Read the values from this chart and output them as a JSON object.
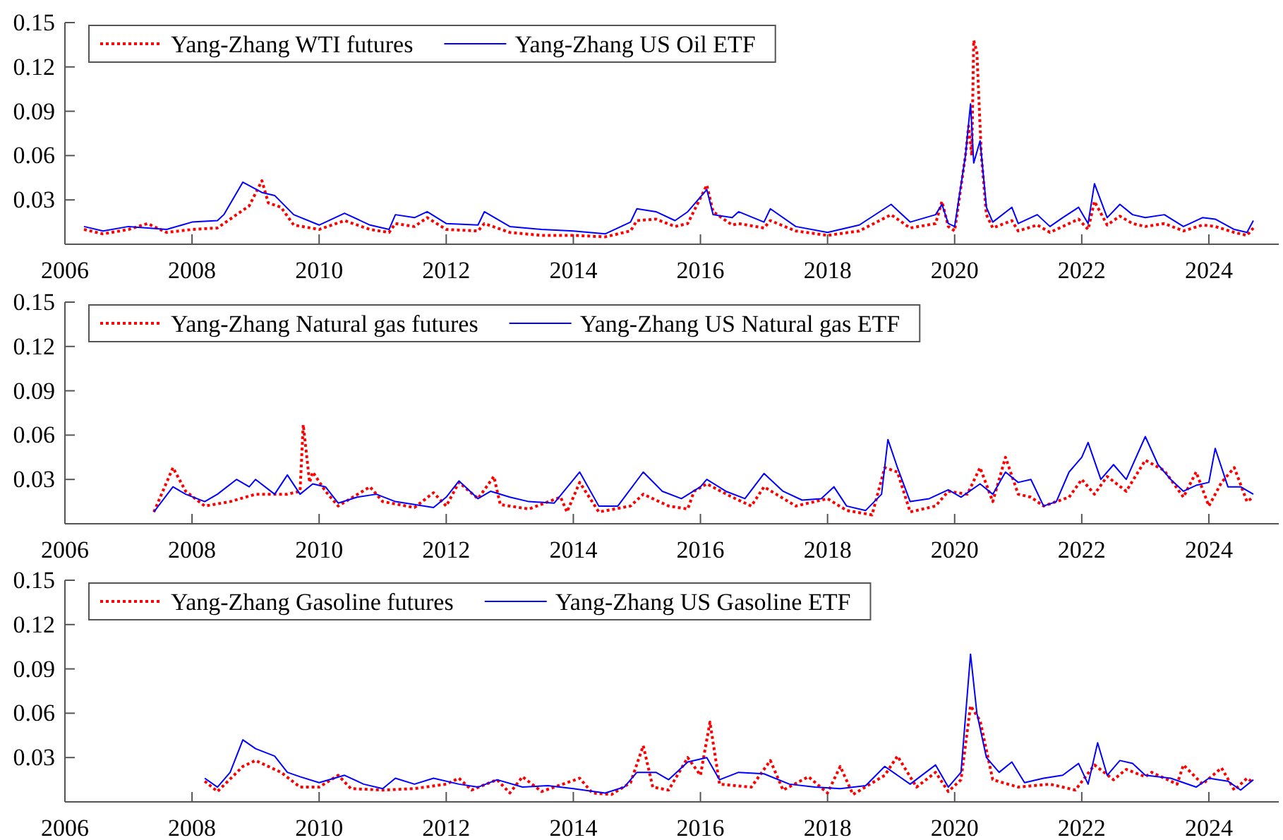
{
  "chart_data": [
    {
      "type": "line",
      "xlim": [
        2006,
        2025.1
      ],
      "xticks": [
        2006,
        2008,
        2010,
        2012,
        2014,
        2016,
        2018,
        2020,
        2022,
        2024
      ],
      "ylim": [
        0,
        0.15
      ],
      "yticks": [
        0.03,
        0.06,
        0.09,
        0.12,
        0.15
      ],
      "grid": false,
      "legend": "top left",
      "series": [
        {
          "name": "Yang-Zhang WTI futures",
          "color": "#ff0000",
          "line_style": "dotted",
          "x": [
            2006.3,
            2006.6,
            2007,
            2007.3,
            2007.6,
            2008,
            2008.4,
            2008.7,
            2008.9,
            2009.1,
            2009.2,
            2009.4,
            2009.6,
            2010,
            2010.4,
            2010.8,
            2011.1,
            2011.2,
            2011.5,
            2011.7,
            2012,
            2012.5,
            2012.6,
            2013,
            2013.5,
            2014,
            2014.5,
            2014.9,
            2015.0,
            2015.3,
            2015.6,
            2015.8,
            2016.1,
            2016.2,
            2016.5,
            2016.6,
            2017,
            2017.1,
            2017.5,
            2018,
            2018.5,
            2019,
            2019.3,
            2019.7,
            2019.8,
            2019.9,
            2020,
            2020.17,
            2020.22,
            2020.27,
            2020.3,
            2020.35,
            2020.42,
            2020.5,
            2020.6,
            2020.9,
            2021,
            2021.3,
            2021.5,
            2021.7,
            2021.95,
            2022.1,
            2022.2,
            2022.4,
            2022.6,
            2022.8,
            2023,
            2023.3,
            2023.6,
            2023.9,
            2024.1,
            2024.4,
            2024.6,
            2024.7
          ],
          "values": [
            0.01,
            0.007,
            0.01,
            0.014,
            0.008,
            0.01,
            0.011,
            0.02,
            0.026,
            0.043,
            0.028,
            0.025,
            0.013,
            0.01,
            0.016,
            0.01,
            0.008,
            0.014,
            0.012,
            0.018,
            0.01,
            0.009,
            0.014,
            0.008,
            0.006,
            0.006,
            0.005,
            0.009,
            0.016,
            0.017,
            0.012,
            0.014,
            0.04,
            0.022,
            0.013,
            0.014,
            0.011,
            0.016,
            0.009,
            0.006,
            0.009,
            0.02,
            0.011,
            0.014,
            0.029,
            0.012,
            0.009,
            0.06,
            0.08,
            0.06,
            0.138,
            0.13,
            0.06,
            0.02,
            0.011,
            0.016,
            0.009,
            0.013,
            0.008,
            0.012,
            0.017,
            0.01,
            0.029,
            0.013,
            0.019,
            0.014,
            0.012,
            0.014,
            0.009,
            0.013,
            0.012,
            0.008,
            0.006,
            0.011
          ]
        },
        {
          "name": "Yang-Zhang US Oil ETF",
          "color": "#0000ff",
          "line_style": "solid",
          "x": [
            2006.3,
            2006.6,
            2007,
            2007.3,
            2007.6,
            2008,
            2008.4,
            2008.5,
            2008.8,
            2009.1,
            2009.3,
            2009.6,
            2010,
            2010.4,
            2010.8,
            2011.1,
            2011.2,
            2011.5,
            2011.7,
            2012,
            2012.5,
            2012.6,
            2013,
            2013.5,
            2014,
            2014.5,
            2014.9,
            2015.0,
            2015.3,
            2015.6,
            2015.8,
            2016.1,
            2016.2,
            2016.5,
            2016.6,
            2017,
            2017.1,
            2017.5,
            2018,
            2018.5,
            2019,
            2019.3,
            2019.7,
            2019.8,
            2019.9,
            2020,
            2020.17,
            2020.25,
            2020.3,
            2020.4,
            2020.5,
            2020.6,
            2020.9,
            2021,
            2021.3,
            2021.5,
            2021.7,
            2021.95,
            2022.1,
            2022.2,
            2022.4,
            2022.6,
            2022.8,
            2023,
            2023.3,
            2023.6,
            2023.9,
            2024.1,
            2024.4,
            2024.6,
            2024.7
          ],
          "values": [
            0.012,
            0.009,
            0.012,
            0.011,
            0.01,
            0.015,
            0.016,
            0.02,
            0.042,
            0.035,
            0.033,
            0.02,
            0.013,
            0.021,
            0.013,
            0.01,
            0.02,
            0.018,
            0.022,
            0.014,
            0.013,
            0.022,
            0.012,
            0.01,
            0.009,
            0.007,
            0.015,
            0.024,
            0.022,
            0.016,
            0.022,
            0.037,
            0.02,
            0.018,
            0.022,
            0.015,
            0.024,
            0.012,
            0.008,
            0.013,
            0.027,
            0.015,
            0.02,
            0.027,
            0.014,
            0.012,
            0.06,
            0.095,
            0.055,
            0.07,
            0.025,
            0.015,
            0.025,
            0.014,
            0.02,
            0.012,
            0.018,
            0.025,
            0.014,
            0.041,
            0.018,
            0.027,
            0.02,
            0.018,
            0.02,
            0.012,
            0.018,
            0.017,
            0.01,
            0.008,
            0.016
          ]
        }
      ]
    },
    {
      "type": "line",
      "xlim": [
        2006,
        2025.1
      ],
      "xticks": [
        2006,
        2008,
        2010,
        2012,
        2014,
        2016,
        2018,
        2020,
        2022,
        2024
      ],
      "ylim": [
        0,
        0.15
      ],
      "yticks": [
        0.03,
        0.06,
        0.09,
        0.12,
        0.15
      ],
      "grid": false,
      "legend": "top left",
      "series": [
        {
          "name": "Yang-Zhang Natural gas futures",
          "color": "#ff0000",
          "line_style": "dotted",
          "x": [
            2007.4,
            2007.7,
            2007.9,
            2008.2,
            2008.6,
            2009,
            2009.5,
            2009.7,
            2009.75,
            2009.85,
            2009.9,
            2010.1,
            2010.3,
            2010.8,
            2011,
            2011.5,
            2011.8,
            2012,
            2012.2,
            2012.5,
            2012.75,
            2012.85,
            2013.3,
            2013.8,
            2013.9,
            2014.1,
            2014.4,
            2014.9,
            2015.1,
            2015.5,
            2015.8,
            2015.9,
            2016.1,
            2016.5,
            2016.8,
            2017,
            2017.5,
            2018,
            2018.3,
            2018.7,
            2018.9,
            2019.1,
            2019.3,
            2019.7,
            2019.9,
            2020.2,
            2020.4,
            2020.6,
            2020.8,
            2021,
            2021.2,
            2021.4,
            2021.8,
            2022,
            2022.2,
            2022.4,
            2022.7,
            2023,
            2023.3,
            2023.6,
            2023.8,
            2024,
            2024.2,
            2024.4,
            2024.6,
            2024.7
          ],
          "values": [
            0.008,
            0.038,
            0.022,
            0.012,
            0.015,
            0.02,
            0.02,
            0.022,
            0.067,
            0.028,
            0.035,
            0.022,
            0.012,
            0.025,
            0.015,
            0.011,
            0.021,
            0.012,
            0.028,
            0.017,
            0.032,
            0.013,
            0.01,
            0.018,
            0.008,
            0.028,
            0.008,
            0.012,
            0.02,
            0.012,
            0.01,
            0.022,
            0.027,
            0.018,
            0.012,
            0.025,
            0.012,
            0.017,
            0.009,
            0.006,
            0.038,
            0.035,
            0.008,
            0.012,
            0.022,
            0.02,
            0.038,
            0.015,
            0.045,
            0.02,
            0.018,
            0.012,
            0.018,
            0.03,
            0.02,
            0.032,
            0.022,
            0.043,
            0.036,
            0.018,
            0.035,
            0.012,
            0.028,
            0.038,
            0.015,
            0.018
          ]
        },
        {
          "name": "Yang-Zhang US Natural gas ETF",
          "color": "#0000ff",
          "line_style": "solid",
          "x": [
            2007.4,
            2007.7,
            2007.9,
            2008.2,
            2008.4,
            2008.7,
            2008.9,
            2009.0,
            2009.3,
            2009.5,
            2009.7,
            2009.9,
            2010.1,
            2010.3,
            2010.6,
            2010.9,
            2011.2,
            2011.5,
            2011.8,
            2012,
            2012.2,
            2012.5,
            2012.7,
            2013,
            2013.3,
            2013.7,
            2014.1,
            2014.4,
            2014.7,
            2015.1,
            2015.4,
            2015.7,
            2016,
            2016.1,
            2016.4,
            2016.7,
            2017.0,
            2017.3,
            2017.6,
            2017.9,
            2018.1,
            2018.3,
            2018.6,
            2018.85,
            2018.95,
            2019.1,
            2019.3,
            2019.6,
            2019.9,
            2020.1,
            2020.4,
            2020.6,
            2020.8,
            2021,
            2021.2,
            2021.4,
            2021.6,
            2021.8,
            2022,
            2022.1,
            2022.3,
            2022.5,
            2022.7,
            2023.0,
            2023.2,
            2023.4,
            2023.6,
            2023.8,
            2024.0,
            2024.1,
            2024.3,
            2024.5,
            2024.7
          ],
          "values": [
            0.008,
            0.025,
            0.02,
            0.015,
            0.02,
            0.03,
            0.025,
            0.03,
            0.02,
            0.033,
            0.02,
            0.027,
            0.025,
            0.014,
            0.018,
            0.02,
            0.015,
            0.013,
            0.011,
            0.018,
            0.029,
            0.017,
            0.022,
            0.018,
            0.015,
            0.014,
            0.035,
            0.012,
            0.012,
            0.035,
            0.022,
            0.017,
            0.025,
            0.03,
            0.022,
            0.017,
            0.034,
            0.022,
            0.016,
            0.017,
            0.025,
            0.012,
            0.009,
            0.02,
            0.057,
            0.038,
            0.015,
            0.017,
            0.023,
            0.018,
            0.027,
            0.02,
            0.035,
            0.028,
            0.03,
            0.012,
            0.015,
            0.035,
            0.045,
            0.055,
            0.03,
            0.04,
            0.03,
            0.059,
            0.04,
            0.03,
            0.022,
            0.026,
            0.028,
            0.051,
            0.025,
            0.025,
            0.02
          ]
        }
      ]
    },
    {
      "type": "line",
      "xlim": [
        2006,
        2025.1
      ],
      "xticks": [
        2006,
        2008,
        2010,
        2012,
        2014,
        2016,
        2018,
        2020,
        2022,
        2024
      ],
      "ylim": [
        0,
        0.15
      ],
      "yticks": [
        0.03,
        0.06,
        0.09,
        0.12,
        0.15
      ],
      "grid": false,
      "legend": "top left",
      "series": [
        {
          "name": "Yang-Zhang Gasoline futures",
          "color": "#ff0000",
          "line_style": "dotted",
          "x": [
            2008.2,
            2008.4,
            2008.8,
            2009.0,
            2009.4,
            2009.7,
            2010,
            2010.3,
            2010.5,
            2011,
            2011.5,
            2012,
            2012.2,
            2012.4,
            2012.8,
            2013.0,
            2013.2,
            2013.5,
            2014.1,
            2014.3,
            2014.6,
            2014.9,
            2015.1,
            2015.25,
            2015.5,
            2015.8,
            2016.0,
            2016.15,
            2016.3,
            2016.8,
            2017.1,
            2017.3,
            2017.7,
            2018.0,
            2018.2,
            2018.4,
            2018.9,
            2019.1,
            2019.4,
            2019.7,
            2019.9,
            2020.1,
            2020.25,
            2020.4,
            2020.6,
            2021,
            2021.5,
            2021.9,
            2022.2,
            2022.5,
            2022.7,
            2023,
            2023.1,
            2023.5,
            2023.6,
            2023.9,
            2024.2,
            2024.4,
            2024.6,
            2024.7
          ],
          "values": [
            0.014,
            0.007,
            0.024,
            0.028,
            0.02,
            0.01,
            0.01,
            0.018,
            0.009,
            0.008,
            0.009,
            0.012,
            0.016,
            0.008,
            0.015,
            0.006,
            0.017,
            0.007,
            0.016,
            0.006,
            0.005,
            0.013,
            0.038,
            0.01,
            0.008,
            0.03,
            0.018,
            0.054,
            0.012,
            0.01,
            0.028,
            0.008,
            0.017,
            0.006,
            0.024,
            0.005,
            0.018,
            0.031,
            0.01,
            0.02,
            0.007,
            0.015,
            0.065,
            0.055,
            0.015,
            0.01,
            0.012,
            0.008,
            0.025,
            0.015,
            0.022,
            0.017,
            0.02,
            0.012,
            0.025,
            0.012,
            0.023,
            0.008,
            0.016,
            0.013
          ]
        },
        {
          "name": "Yang-Zhang US Gasoline ETF",
          "color": "#0000ff",
          "line_style": "solid",
          "x": [
            2008.2,
            2008.4,
            2008.6,
            2008.8,
            2009.0,
            2009.3,
            2009.5,
            2009.7,
            2010,
            2010.4,
            2010.7,
            2011,
            2011.2,
            2011.5,
            2011.8,
            2012.2,
            2012.5,
            2012.8,
            2013.2,
            2013.6,
            2014,
            2014.5,
            2014.8,
            2015.0,
            2015.3,
            2015.5,
            2015.8,
            2016.1,
            2016.3,
            2016.6,
            2017,
            2017.4,
            2017.8,
            2018.2,
            2018.6,
            2018.9,
            2019.3,
            2019.7,
            2019.9,
            2020.1,
            2020.25,
            2020.35,
            2020.5,
            2020.7,
            2020.9,
            2021.1,
            2021.4,
            2021.7,
            2021.95,
            2022.1,
            2022.25,
            2022.4,
            2022.6,
            2022.8,
            2023,
            2023.4,
            2023.8,
            2024.0,
            2024.3,
            2024.5,
            2024.7
          ],
          "values": [
            0.016,
            0.01,
            0.02,
            0.042,
            0.036,
            0.031,
            0.02,
            0.017,
            0.013,
            0.018,
            0.012,
            0.009,
            0.016,
            0.012,
            0.016,
            0.012,
            0.01,
            0.015,
            0.01,
            0.011,
            0.009,
            0.006,
            0.01,
            0.02,
            0.02,
            0.015,
            0.027,
            0.03,
            0.015,
            0.02,
            0.019,
            0.012,
            0.01,
            0.009,
            0.011,
            0.024,
            0.012,
            0.025,
            0.01,
            0.02,
            0.1,
            0.06,
            0.03,
            0.02,
            0.027,
            0.013,
            0.016,
            0.018,
            0.026,
            0.012,
            0.04,
            0.018,
            0.028,
            0.026,
            0.018,
            0.016,
            0.01,
            0.016,
            0.014,
            0.008,
            0.015
          ]
        }
      ]
    }
  ]
}
